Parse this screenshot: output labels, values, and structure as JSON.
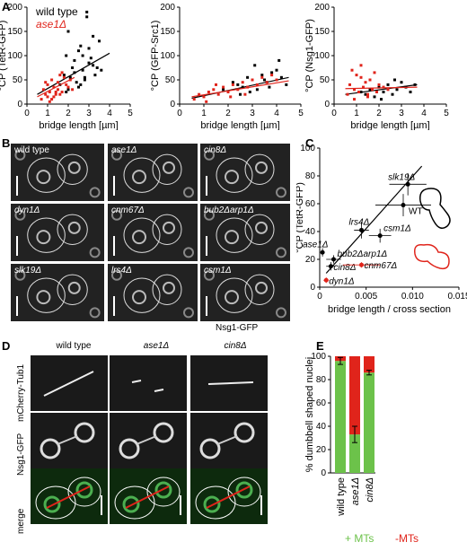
{
  "panel_labels": {
    "A": "A",
    "B": "B",
    "C": "C",
    "D": "D",
    "E": "E"
  },
  "colors": {
    "wild_type": "#000000",
    "ase1": "#e0241b",
    "plus_mts": "#6cc24a",
    "minus_mts": "#e0241b"
  },
  "panel_a": {
    "legend_wild_type": "wild type",
    "legend_ase1": "ase1Δ",
    "xlabel": "bridge length [µm]",
    "x_ticks": [
      "0",
      "1",
      "2",
      "3",
      "4",
      "5"
    ],
    "y_ticks": [
      "0",
      "50",
      "100",
      "150",
      "200"
    ],
    "plots": [
      {
        "ylabel": "°CP (TetR-GFP)"
      },
      {
        "ylabel": "°CP (GFP-Src1)"
      },
      {
        "ylabel": "°CP (Nsg1-GFP)"
      }
    ]
  },
  "panel_b": {
    "images": [
      "wild type",
      "ase1Δ",
      "cin8Δ",
      "dyn1Δ",
      "cnm67Δ",
      "bub2Δarp1Δ",
      "slk19Δ",
      "lrs4Δ",
      "csm1Δ"
    ],
    "caption": "Nsg1-GFP"
  },
  "panel_c": {
    "xlabel": "bridge length / cross section",
    "ylabel": "°CP (TetR-GFP)",
    "x_ticks": [
      "0",
      "0.005",
      "0.010",
      "0.015"
    ],
    "y_ticks": [
      "0",
      "20",
      "40",
      "60",
      "80",
      "100"
    ],
    "point_labels": [
      "slk19Δ",
      "WT",
      "lrs4Δ",
      "csm1Δ",
      "ase1Δ",
      "bub2Δarp1Δ",
      "cin8Δ",
      "cnm67Δ",
      "dyn1Δ"
    ]
  },
  "panel_d": {
    "columns": [
      "wild type",
      "ase1Δ",
      "cin8Δ"
    ],
    "rows": [
      "mCherry-Tub1",
      "Nsg1-GFP",
      "merge"
    ]
  },
  "panel_e": {
    "ylabel": "% dumbbell shaped nuclei",
    "y_ticks": [
      "0",
      "20",
      "40",
      "60",
      "80",
      "100"
    ],
    "legend_plus": "+ MTs",
    "legend_minus": "-MTs"
  },
  "chart_data": [
    {
      "type": "scatter",
      "title": "",
      "xlabel": "bridge length [µm]",
      "ylabel": "°CP (TetR-GFP)",
      "xlim": [
        0,
        5
      ],
      "ylim": [
        0,
        200
      ],
      "series": [
        {
          "name": "wild type",
          "x": [
            1.6,
            1.8,
            1.9,
            2.0,
            2.1,
            2.2,
            2.3,
            2.4,
            2.5,
            2.6,
            2.7,
            2.8,
            2.9,
            3.0,
            3.1,
            3.2,
            3.3,
            3.4,
            3.5,
            2.0,
            2.5,
            2.9,
            3.2,
            2.7,
            1.9,
            2.3,
            3.0,
            2.8,
            2.6,
            3.6
          ],
          "y": [
            40,
            60,
            100,
            30,
            55,
            75,
            90,
            45,
            110,
            120,
            70,
            50,
            190,
            85,
            95,
            140,
            60,
            75,
            130,
            150,
            35,
            180,
            80,
            100,
            25,
            65,
            115,
            55,
            40,
            70
          ],
          "trend": [
            [
              0.5,
              20
            ],
            [
              4,
              105
            ]
          ]
        },
        {
          "name": "ase1Δ",
          "x": [
            0.7,
            0.8,
            0.9,
            1.0,
            1.0,
            1.1,
            1.2,
            1.2,
            1.3,
            1.4,
            1.5,
            1.5,
            1.6,
            1.7,
            1.8,
            1.9,
            2.0,
            2.1,
            1.1,
            0.9,
            1.3,
            1.7,
            1.4,
            2.2,
            1.6
          ],
          "y": [
            10,
            30,
            20,
            15,
            40,
            25,
            10,
            50,
            35,
            20,
            45,
            30,
            60,
            25,
            55,
            40,
            35,
            50,
            5,
            45,
            15,
            65,
            25,
            30,
            20
          ],
          "trend": [
            [
              0.5,
              15
            ],
            [
              2.3,
              55
            ]
          ]
        }
      ]
    },
    {
      "type": "scatter",
      "title": "",
      "xlabel": "bridge length [µm]",
      "ylabel": "°CP (GFP-Src1)",
      "xlim": [
        0,
        5
      ],
      "ylim": [
        0,
        200
      ],
      "series": [
        {
          "name": "wild type",
          "x": [
            1.8,
            2.0,
            2.2,
            2.4,
            2.6,
            2.8,
            3.0,
            3.2,
            3.4,
            3.6,
            3.8,
            4.0,
            4.2,
            4.4,
            2.5,
            3.1,
            3.7,
            4.1,
            2.9,
            3.5
          ],
          "y": [
            30,
            25,
            45,
            40,
            35,
            55,
            50,
            30,
            60,
            45,
            65,
            70,
            55,
            40,
            20,
            80,
            35,
            90,
            25,
            50
          ],
          "trend": [
            [
              0.5,
              12
            ],
            [
              4.5,
              55
            ]
          ]
        },
        {
          "name": "ase1Δ",
          "x": [
            0.6,
            0.8,
            1.0,
            1.2,
            1.4,
            1.6,
            1.8,
            2.0,
            2.2,
            2.4,
            2.6,
            2.8,
            3.0,
            3.2,
            3.4,
            3.6,
            3.8,
            4.0,
            1.1,
            1.5,
            2.1,
            2.7
          ],
          "y": [
            10,
            20,
            15,
            25,
            30,
            20,
            35,
            25,
            40,
            30,
            45,
            35,
            50,
            40,
            55,
            45,
            60,
            50,
            5,
            40,
            15,
            20
          ],
          "trend": [
            [
              0.5,
              15
            ],
            [
              4.5,
              48
            ]
          ]
        }
      ]
    },
    {
      "type": "scatter",
      "title": "",
      "xlabel": "bridge length [µm]",
      "ylabel": "°CP (Nsg1-GFP)",
      "xlim": [
        0,
        5
      ],
      "ylim": [
        0,
        200
      ],
      "series": [
        {
          "name": "wild type",
          "x": [
            1.2,
            1.4,
            1.6,
            1.8,
            2.0,
            2.2,
            2.4,
            2.6,
            2.8,
            3.0,
            3.2,
            3.4,
            3.6,
            2.1,
            2.7
          ],
          "y": [
            25,
            20,
            30,
            15,
            35,
            25,
            40,
            20,
            30,
            45,
            35,
            25,
            40,
            10,
            50
          ],
          "trend": [
            [
              0.5,
              20
            ],
            [
              3.7,
              40
            ]
          ]
        },
        {
          "name": "ase1Δ",
          "x": [
            0.6,
            0.7,
            0.8,
            0.9,
            1.0,
            1.1,
            1.2,
            1.3,
            1.4,
            1.5,
            1.6,
            1.7,
            1.8,
            1.9,
            2.0,
            2.2,
            2.4,
            0.9,
            1.2,
            1.5
          ],
          "y": [
            20,
            40,
            70,
            30,
            60,
            25,
            55,
            35,
            45,
            20,
            50,
            30,
            65,
            25,
            40,
            35,
            30,
            10,
            80,
            15
          ],
          "trend": [
            [
              0.5,
              32
            ],
            [
              3.7,
              35
            ]
          ]
        }
      ]
    },
    {
      "type": "scatter",
      "title": "",
      "xlabel": "bridge length / cross section",
      "ylabel": "°CP (TetR-GFP)",
      "xlim": [
        0,
        0.015
      ],
      "ylim": [
        0,
        100
      ],
      "points": [
        {
          "label": "slk19Δ",
          "x": 0.0095,
          "y": 74,
          "xerr": 0.002,
          "yerr": 8,
          "color": "black"
        },
        {
          "label": "WT",
          "x": 0.009,
          "y": 59,
          "xerr": 0.003,
          "yerr": 8,
          "color": "black"
        },
        {
          "label": "lrs4Δ",
          "x": 0.0045,
          "y": 41,
          "xerr": 0.0008,
          "yerr": 6,
          "color": "black"
        },
        {
          "label": "csm1Δ",
          "x": 0.0065,
          "y": 37,
          "xerr": 0.0012,
          "yerr": 5,
          "color": "black"
        },
        {
          "label": "ase1Δ",
          "x": 0.0003,
          "y": 25,
          "xerr": 0.0002,
          "yerr": 3,
          "color": "black"
        },
        {
          "label": "bub2Δarp1Δ",
          "x": 0.0015,
          "y": 20,
          "xerr": 0.0008,
          "yerr": 3,
          "color": "black"
        },
        {
          "label": "cin8Δ",
          "x": 0.0012,
          "y": 15,
          "xerr": 0.0005,
          "yerr": 3,
          "color": "black"
        },
        {
          "label": "cnm67Δ",
          "x": 0.0045,
          "y": 16,
          "xerr": 0.002,
          "yerr": 2,
          "color": "red"
        },
        {
          "label": "dyn1Δ",
          "x": 0.0007,
          "y": 5,
          "xerr": 0.0003,
          "yerr": 2,
          "color": "red"
        }
      ],
      "fit": [
        [
          0.0007,
          10
        ],
        [
          0.011,
          87
        ]
      ]
    },
    {
      "type": "bar",
      "title": "",
      "ylabel": "% dumbbell shaped nuclei",
      "ylim": [
        0,
        100
      ],
      "categories": [
        "wild type",
        "ase1Δ",
        "cin8Δ"
      ],
      "stacked": true,
      "series": [
        {
          "name": "+ MTs",
          "values": [
            96,
            33,
            86
          ],
          "errors": [
            3,
            7,
            2
          ]
        },
        {
          "name": "-MTs",
          "values": [
            4,
            67,
            14
          ]
        }
      ]
    }
  ]
}
